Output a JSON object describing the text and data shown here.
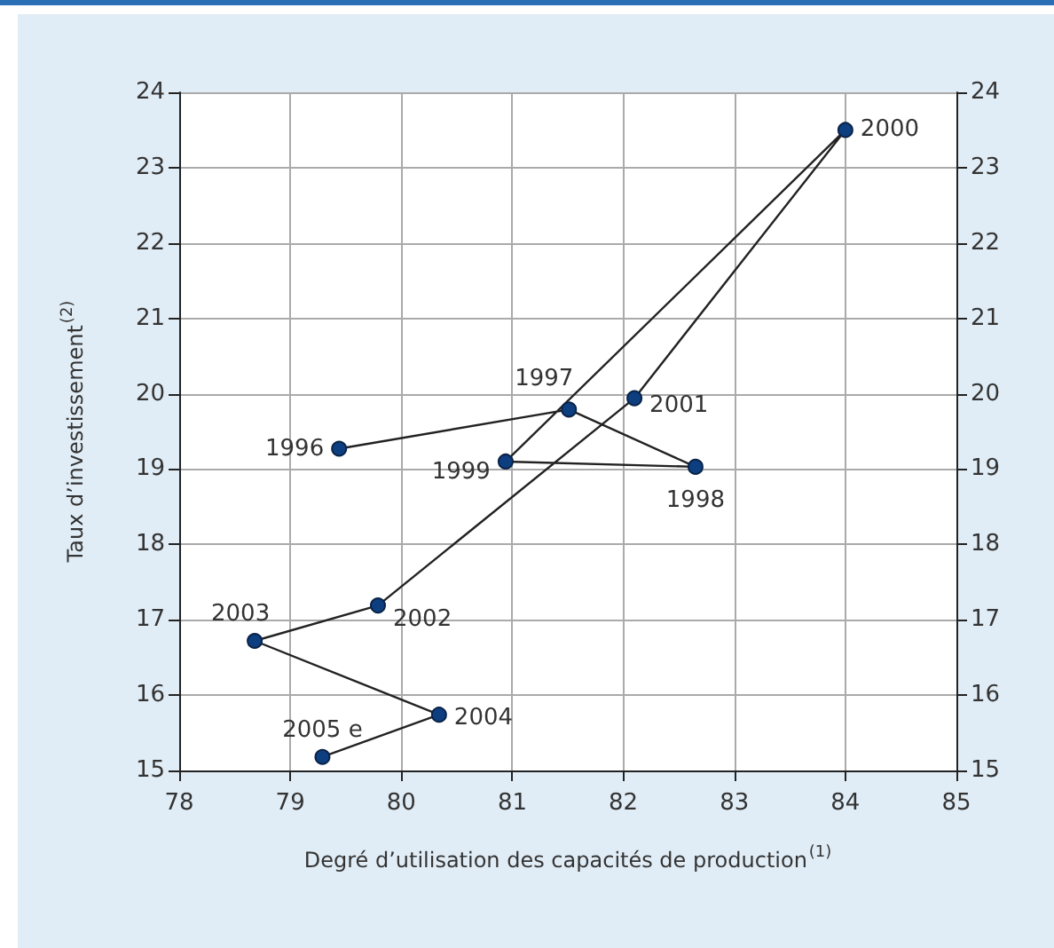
{
  "chart_data": {
    "type": "line",
    "xlabel": "Degré d’utilisation des capacités de production$^{(1)}$",
    "ylabel": "Taux d’investissement$^{(2)}$",
    "series": [
      {
        "color": "#0d3f80",
        "x": [
          79.44,
          81.51,
          82.65,
          80.94,
          84.0,
          82.1,
          79.79,
          78.68,
          80.34,
          79.29
        ],
        "values": [
          19.27,
          19.79,
          19.03,
          19.1,
          23.5,
          19.94,
          17.19,
          16.72,
          15.74,
          15.18
        ]
      }
    ],
    "annotations": [
      {
        "text": "1996",
        "x": 79.44,
        "y": 19.27
      },
      {
        "text": "1997",
        "x": 81.51,
        "y": 19.79
      },
      {
        "text": "1998",
        "x": 82.65,
        "y": 19.03
      },
      {
        "text": "1999",
        "x": 80.94,
        "y": 19.1
      },
      {
        "text": "2000",
        "x": 84.0,
        "y": 23.5
      },
      {
        "text": "2001",
        "x": 82.1,
        "y": 19.94
      },
      {
        "text": "2002",
        "x": 79.79,
        "y": 17.19
      },
      {
        "text": "2003",
        "x": 78.68,
        "y": 16.72
      },
      {
        "text": "2004",
        "x": 80.34,
        "y": 15.74
      },
      {
        "text": "2005 e",
        "x": 79.29,
        "y": 15.18
      }
    ],
    "xlim": [
      78,
      85
    ],
    "xticks": [
      78,
      79,
      80,
      81,
      82,
      83,
      84,
      85
    ],
    "ylim": [
      15,
      24
    ],
    "yticks": [
      15,
      16,
      17,
      18,
      19,
      20,
      21,
      22,
      23,
      24
    ],
    "y2lim": [
      15,
      24
    ],
    "y2ticks": [
      15,
      16,
      17,
      18,
      19,
      20,
      21,
      22,
      23,
      24
    ],
    "grid": true,
    "marker": "circle",
    "line_style": "solid"
  }
}
